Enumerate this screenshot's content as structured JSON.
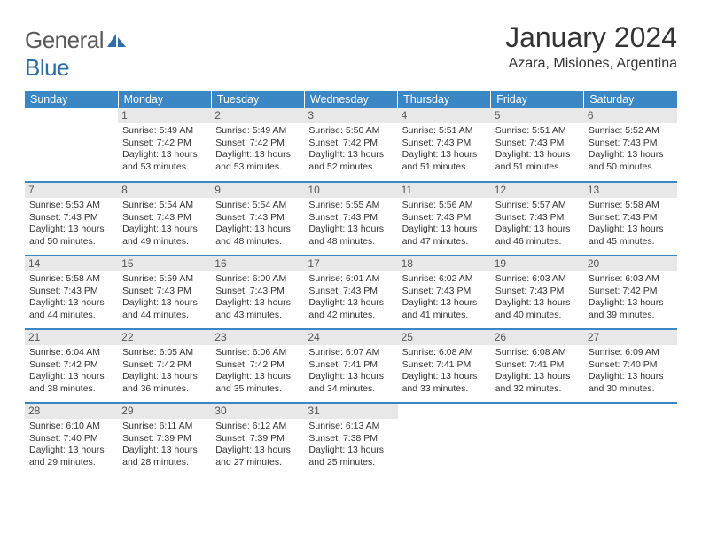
{
  "logo": {
    "word1": "General",
    "word2": "Blue"
  },
  "title": "January 2024",
  "location": "Azara, Misiones, Argentina",
  "columns": [
    "Sunday",
    "Monday",
    "Tuesday",
    "Wednesday",
    "Thursday",
    "Friday",
    "Saturday"
  ],
  "colors": {
    "header_bg": "#3b86c4",
    "header_text": "#ffffff",
    "daynum_bg": "#e8e8e8",
    "daynum_text": "#555555",
    "body_text": "#333333",
    "logo_gray": "#5a5a5a",
    "logo_blue": "#2d6ea8",
    "row_divider": "#3b86c4"
  },
  "weeks": [
    [
      {
        "day": "",
        "sunrise": "",
        "sunset": "",
        "daylight": ""
      },
      {
        "day": "1",
        "sunrise": "5:49 AM",
        "sunset": "7:42 PM",
        "daylight": "13 hours and 53 minutes."
      },
      {
        "day": "2",
        "sunrise": "5:49 AM",
        "sunset": "7:42 PM",
        "daylight": "13 hours and 53 minutes."
      },
      {
        "day": "3",
        "sunrise": "5:50 AM",
        "sunset": "7:42 PM",
        "daylight": "13 hours and 52 minutes."
      },
      {
        "day": "4",
        "sunrise": "5:51 AM",
        "sunset": "7:43 PM",
        "daylight": "13 hours and 51 minutes."
      },
      {
        "day": "5",
        "sunrise": "5:51 AM",
        "sunset": "7:43 PM",
        "daylight": "13 hours and 51 minutes."
      },
      {
        "day": "6",
        "sunrise": "5:52 AM",
        "sunset": "7:43 PM",
        "daylight": "13 hours and 50 minutes."
      }
    ],
    [
      {
        "day": "7",
        "sunrise": "5:53 AM",
        "sunset": "7:43 PM",
        "daylight": "13 hours and 50 minutes."
      },
      {
        "day": "8",
        "sunrise": "5:54 AM",
        "sunset": "7:43 PM",
        "daylight": "13 hours and 49 minutes."
      },
      {
        "day": "9",
        "sunrise": "5:54 AM",
        "sunset": "7:43 PM",
        "daylight": "13 hours and 48 minutes."
      },
      {
        "day": "10",
        "sunrise": "5:55 AM",
        "sunset": "7:43 PM",
        "daylight": "13 hours and 48 minutes."
      },
      {
        "day": "11",
        "sunrise": "5:56 AM",
        "sunset": "7:43 PM",
        "daylight": "13 hours and 47 minutes."
      },
      {
        "day": "12",
        "sunrise": "5:57 AM",
        "sunset": "7:43 PM",
        "daylight": "13 hours and 46 minutes."
      },
      {
        "day": "13",
        "sunrise": "5:58 AM",
        "sunset": "7:43 PM",
        "daylight": "13 hours and 45 minutes."
      }
    ],
    [
      {
        "day": "14",
        "sunrise": "5:58 AM",
        "sunset": "7:43 PM",
        "daylight": "13 hours and 44 minutes."
      },
      {
        "day": "15",
        "sunrise": "5:59 AM",
        "sunset": "7:43 PM",
        "daylight": "13 hours and 44 minutes."
      },
      {
        "day": "16",
        "sunrise": "6:00 AM",
        "sunset": "7:43 PM",
        "daylight": "13 hours and 43 minutes."
      },
      {
        "day": "17",
        "sunrise": "6:01 AM",
        "sunset": "7:43 PM",
        "daylight": "13 hours and 42 minutes."
      },
      {
        "day": "18",
        "sunrise": "6:02 AM",
        "sunset": "7:43 PM",
        "daylight": "13 hours and 41 minutes."
      },
      {
        "day": "19",
        "sunrise": "6:03 AM",
        "sunset": "7:43 PM",
        "daylight": "13 hours and 40 minutes."
      },
      {
        "day": "20",
        "sunrise": "6:03 AM",
        "sunset": "7:42 PM",
        "daylight": "13 hours and 39 minutes."
      }
    ],
    [
      {
        "day": "21",
        "sunrise": "6:04 AM",
        "sunset": "7:42 PM",
        "daylight": "13 hours and 38 minutes."
      },
      {
        "day": "22",
        "sunrise": "6:05 AM",
        "sunset": "7:42 PM",
        "daylight": "13 hours and 36 minutes."
      },
      {
        "day": "23",
        "sunrise": "6:06 AM",
        "sunset": "7:42 PM",
        "daylight": "13 hours and 35 minutes."
      },
      {
        "day": "24",
        "sunrise": "6:07 AM",
        "sunset": "7:41 PM",
        "daylight": "13 hours and 34 minutes."
      },
      {
        "day": "25",
        "sunrise": "6:08 AM",
        "sunset": "7:41 PM",
        "daylight": "13 hours and 33 minutes."
      },
      {
        "day": "26",
        "sunrise": "6:08 AM",
        "sunset": "7:41 PM",
        "daylight": "13 hours and 32 minutes."
      },
      {
        "day": "27",
        "sunrise": "6:09 AM",
        "sunset": "7:40 PM",
        "daylight": "13 hours and 30 minutes."
      }
    ],
    [
      {
        "day": "28",
        "sunrise": "6:10 AM",
        "sunset": "7:40 PM",
        "daylight": "13 hours and 29 minutes."
      },
      {
        "day": "29",
        "sunrise": "6:11 AM",
        "sunset": "7:39 PM",
        "daylight": "13 hours and 28 minutes."
      },
      {
        "day": "30",
        "sunrise": "6:12 AM",
        "sunset": "7:39 PM",
        "daylight": "13 hours and 27 minutes."
      },
      {
        "day": "31",
        "sunrise": "6:13 AM",
        "sunset": "7:38 PM",
        "daylight": "13 hours and 25 minutes."
      },
      {
        "day": "",
        "sunrise": "",
        "sunset": "",
        "daylight": ""
      },
      {
        "day": "",
        "sunrise": "",
        "sunset": "",
        "daylight": ""
      },
      {
        "day": "",
        "sunrise": "",
        "sunset": "",
        "daylight": ""
      }
    ]
  ]
}
